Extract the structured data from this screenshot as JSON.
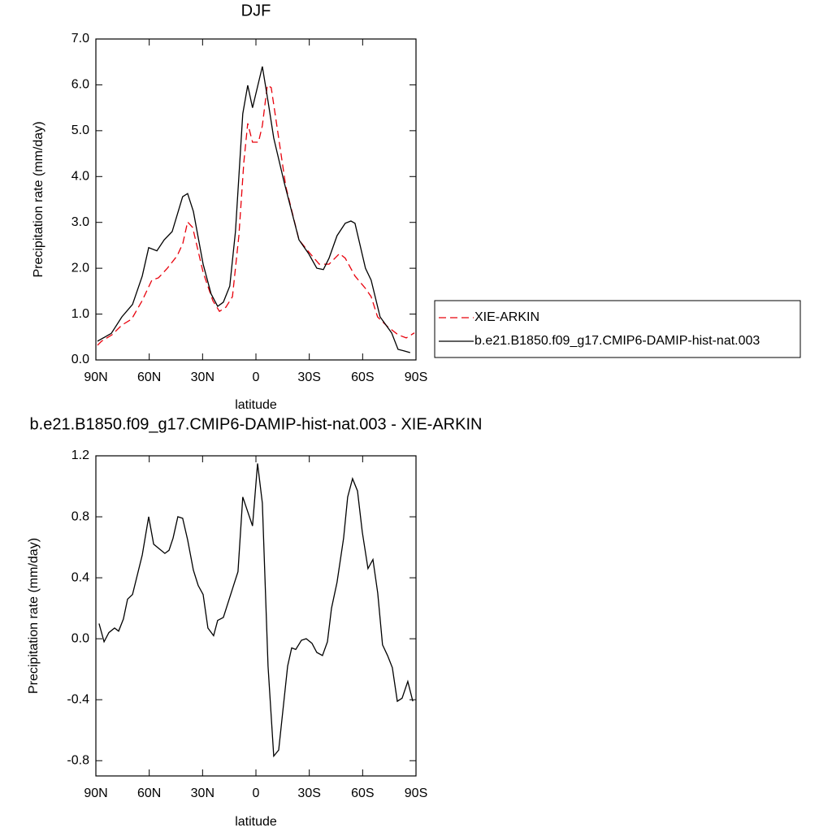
{
  "chart_data": [
    {
      "type": "line",
      "title": "DJF",
      "x_label": "latitude",
      "y_label": "Precipitation rate (mm/day)",
      "xlim": [
        90,
        -90
      ],
      "xticks": [
        {
          "value": 90,
          "label": "90N"
        },
        {
          "value": 60,
          "label": "60N"
        },
        {
          "value": 30,
          "label": "30N"
        },
        0,
        {
          "value": -30,
          "label": "30S"
        },
        {
          "value": -60,
          "label": "60S"
        },
        {
          "value": -90,
          "label": "90S"
        }
      ],
      "ylim": [
        0,
        7
      ],
      "yticks": [
        {
          "value": 0,
          "label": "0.0"
        },
        {
          "value": 1,
          "label": "1.0"
        },
        {
          "value": 2,
          "label": "2.0"
        },
        {
          "value": 3,
          "label": "3.0"
        },
        {
          "value": 4,
          "label": "4.0"
        },
        {
          "value": 5,
          "label": "5.0"
        },
        {
          "value": 6,
          "label": "6.0"
        },
        {
          "value": 7,
          "label": "7.0"
        }
      ],
      "legend": "right",
      "series": [
        {
          "name": "XIE-ARKIN",
          "color": "#e8000b",
          "line_style": "dashed",
          "x": [
            89.1,
            86.8,
            80.9,
            75.4,
            69.9,
            64.0,
            58.5,
            54.8,
            49.8,
            44.3,
            41.1,
            38.4,
            35.6,
            29.7,
            24.2,
            20.5,
            16.9,
            13.2,
            9.6,
            6.8,
            4.6,
            1.9,
            -1.4,
            -3.6,
            -6.4,
            -8.6,
            -11.4,
            -16.8,
            -24.2,
            -29.6,
            -35.6,
            -41.1,
            -47.0,
            -50.2,
            -55.7,
            -61.6,
            -64.8,
            -68.4,
            -73.9,
            -79.9,
            -84.5,
            -89.1
          ],
          "values": [
            0.32,
            0.41,
            0.55,
            0.76,
            0.89,
            1.29,
            1.74,
            1.79,
            2.0,
            2.27,
            2.54,
            3.01,
            2.89,
            1.91,
            1.29,
            1.06,
            1.15,
            1.38,
            2.71,
            4.31,
            5.16,
            4.75,
            4.75,
            5.11,
            5.99,
            5.94,
            5.2,
            3.78,
            2.62,
            2.36,
            2.09,
            2.09,
            2.32,
            2.22,
            1.83,
            1.56,
            1.38,
            0.94,
            0.73,
            0.55,
            0.48,
            0.59
          ]
        },
        {
          "name": "b.e21.B1850.f09_g17.CMIP6-DAMIP-hist-nat.003",
          "color": "#000000",
          "line_style": "solid",
          "x": [
            89.1,
            81.3,
            75.4,
            69.4,
            63.9,
            60.3,
            55.7,
            51.6,
            47.1,
            41.2,
            38.4,
            35.2,
            29.7,
            25.2,
            21.5,
            18.3,
            14.7,
            11.5,
            7.4,
            4.6,
            1.9,
            -3.6,
            -6.8,
            -10.0,
            -15.9,
            -24.2,
            -29.6,
            -34.2,
            -37.9,
            -41.1,
            -45.6,
            -50.2,
            -53.4,
            -55.7,
            -61.6,
            -64.8,
            -69.8,
            -76.3,
            -79.9,
            -83.1,
            -86.7
          ],
          "values": [
            0.41,
            0.58,
            0.94,
            1.21,
            1.83,
            2.45,
            2.38,
            2.62,
            2.8,
            3.56,
            3.63,
            3.24,
            2.09,
            1.44,
            1.17,
            1.26,
            1.61,
            2.8,
            5.37,
            5.99,
            5.5,
            6.4,
            5.64,
            4.84,
            3.87,
            2.62,
            2.32,
            2.0,
            1.97,
            2.22,
            2.71,
            2.98,
            3.03,
            2.98,
            2.0,
            1.74,
            0.94,
            0.59,
            0.23,
            0.2,
            0.16
          ]
        }
      ]
    },
    {
      "type": "line",
      "title": "b.e21.B1850.f09_g17.CMIP6-DAMIP-hist-nat.003 - XIE-ARKIN",
      "x_label": "latitude",
      "y_label": "Precipitation rate (mm/day)",
      "xlim": [
        90,
        -90
      ],
      "xticks": [
        {
          "value": 90,
          "label": "90N"
        },
        {
          "value": 60,
          "label": "60N"
        },
        {
          "value": 30,
          "label": "30N"
        },
        0,
        {
          "value": -30,
          "label": "30S"
        },
        {
          "value": -60,
          "label": "60S"
        },
        {
          "value": -90,
          "label": "90S"
        }
      ],
      "ylim": [
        -0.9,
        1.2
      ],
      "yticks": [
        -0.8,
        -0.4,
        {
          "value": 0,
          "label": "0.0"
        },
        0.4,
        0.8,
        1.2
      ],
      "color": "#000000",
      "x": [
        88.2,
        85.4,
        82.7,
        79.5,
        77.2,
        74.5,
        72.2,
        69.4,
        63.9,
        60.3,
        57.5,
        54.4,
        51.2,
        48.9,
        46.6,
        43.9,
        41.2,
        38.4,
        35.2,
        32.5,
        29.7,
        27.0,
        23.8,
        21.5,
        18.3,
        12.3,
        10.1,
        7.4,
        1.9,
        -0.9,
        -3.6,
        -6.8,
        -10.0,
        -12.8,
        -17.8,
        -20.1,
        -22.4,
        -25.6,
        -28.3,
        -31.5,
        -34.2,
        -37.4,
        -40.2,
        -42.5,
        -45.6,
        -49.3,
        -51.6,
        -54.3,
        -57.1,
        -59.8,
        -63.0,
        -65.8,
        -68.5,
        -71.2,
        -74.0,
        -76.7,
        -79.5,
        -82.2,
        -85.4,
        -88.2
      ],
      "values": [
        0.1,
        -0.02,
        0.04,
        0.07,
        0.05,
        0.13,
        0.26,
        0.29,
        0.55,
        0.8,
        0.62,
        0.59,
        0.56,
        0.58,
        0.66,
        0.8,
        0.79,
        0.65,
        0.45,
        0.35,
        0.29,
        0.07,
        0.02,
        0.12,
        0.14,
        0.36,
        0.44,
        0.93,
        0.74,
        1.15,
        0.89,
        -0.18,
        -0.77,
        -0.73,
        -0.18,
        -0.06,
        -0.07,
        -0.01,
        0.0,
        -0.03,
        -0.09,
        -0.11,
        -0.02,
        0.2,
        0.37,
        0.66,
        0.93,
        1.05,
        0.97,
        0.7,
        0.46,
        0.52,
        0.3,
        -0.04,
        -0.11,
        -0.19,
        -0.41,
        -0.39,
        -0.28,
        -0.41
      ]
    }
  ]
}
